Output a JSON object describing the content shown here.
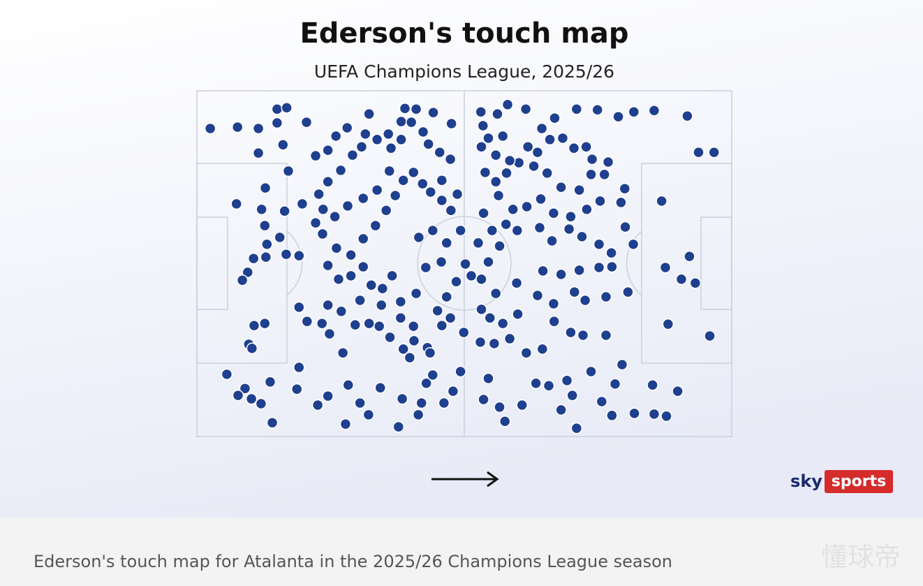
{
  "chart_data": {
    "type": "scatter",
    "title": "Ederson's touch map",
    "subtitle": "UEFA Champions League, 2025/26",
    "color": "#1f3f8f",
    "xlim": [
      0,
      100
    ],
    "ylim": [
      0,
      100
    ],
    "x": [
      2.5,
      7.6,
      11.5,
      15.0,
      16.8,
      15.0,
      20.5,
      11.5,
      16.1,
      17.1,
      12.8,
      7.4,
      12.1,
      16.4,
      19.7,
      12.7,
      15.5,
      13.1,
      12.9,
      10.6,
      16.7,
      19.1,
      9.5,
      8.5,
      10.7,
      12.7,
      9.7,
      10.3,
      5.6,
      9.0,
      7.7,
      10.2,
      12.0,
      13.7,
      14.1,
      18.7,
      19.1,
      22.6,
      24.5,
      27.8,
      28.3,
      30.5,
      32.1,
      34.3,
      37.7,
      38.4,
      41.4,
      42.0,
      46.2,
      47.9,
      49.3,
      42.9,
      44.1,
      22.2,
      24.5,
      26.0,
      28.1,
      32.2,
      31.5,
      33.7,
      35.8,
      38.2,
      38.9,
      41.0,
      40.1,
      42.3,
      44.2,
      47.6,
      43.3,
      45.4,
      47.4,
      38.2,
      36.3,
      30.8,
      29.1,
      26.9,
      24.5,
      22.8,
      23.6,
      22.2,
      23.5,
      26.1,
      28.8,
      31.1,
      33.4,
      35.4,
      37.1,
      38.6,
      40.5,
      42.2,
      43.7,
      45.8,
      47.5,
      48.7,
      45.8,
      36.0,
      33.7,
      31.1,
      28.2,
      25.8,
      24.5,
      26.5,
      28.8,
      31.1,
      32.6,
      34.7,
      36.5,
      38.1,
      41.0,
      42.8,
      45.7,
      48.5,
      46.7,
      45.0,
      47.4,
      49.9,
      43.1,
      40.6,
      38.6,
      36.1,
      34.1,
      32.2,
      29.6,
      27.3,
      24.8,
      23.4,
      20.6,
      19.1,
      24.5,
      27.0,
      30.5,
      34.5,
      38.1,
      40.5,
      39.8,
      43.6,
      45.8,
      41.5,
      44.1,
      46.7,
      49.3,
      50.2,
      51.3,
      53.2,
      54.5,
      56.6,
      55.2,
      52.6,
      53.1,
      56.2,
      58.1,
      61.5,
      64.5,
      66.9,
      71.0,
      74.9,
      78.8,
      81.7,
      85.5,
      91.7,
      93.8,
      96.7,
      86.9,
      87.6,
      92.1,
      90.6,
      93.2,
      88.1,
      95.9,
      85.2,
      89.9,
      87.8,
      85.5,
      81.8,
      77.6,
      75.7,
      78.2,
      79.5,
      73.7,
      71.0,
      68.1,
      70.2,
      69.2,
      65.8,
      63.4,
      60.8,
      57.6,
      56.6,
      53.6,
      54.5,
      53.0,
      55.6,
      58.5,
      61.6,
      64.6,
      66.8,
      69.9,
      72.2,
      76.5,
      80.6,
      76.5,
      72.6,
      70.6,
      66.7,
      63.7,
      60.0,
      57.2,
      54.8,
      53.2,
      55.9,
      59.8,
      64.7,
      68.1,
      71.5,
      75.2,
      77.6,
      77.5,
      75.2,
      72.0,
      69.6,
      66.4,
      64.1,
      59.9,
      57.8,
      53.6,
      56.4,
      59.1,
      61.7,
      64.3,
      66.7,
      69.9,
      72.9,
      75.4,
      79.3,
      80.0,
      76.2,
      73.7,
      71.5,
      68.1,
      65.5,
      63.0,
      60.2,
      57.9,
      55.9,
      53.9,
      53.2,
      55.9,
      58.5,
      61.9,
      63.7,
      66.0,
      68.4,
      70.5,
      72.8,
      76.9,
      73.9,
      80.1,
      81.6,
      53.5,
      54.5,
      57.2
    ],
    "y": [
      89.1,
      89.5,
      89.1,
      94.7,
      95.1,
      90.7,
      90.9,
      82.0,
      84.4,
      76.8,
      71.9,
      67.3,
      65.7,
      65.2,
      67.3,
      61.0,
      57.6,
      55.6,
      51.9,
      51.5,
      52.7,
      52.3,
      47.5,
      45.2,
      32.1,
      32.7,
      26.7,
      25.5,
      18.0,
      13.9,
      11.9,
      10.9,
      9.5,
      15.8,
      4.0,
      13.7,
      20.0,
      9.1,
      11.7,
      3.6,
      14.9,
      9.7,
      6.3,
      14.1,
      2.8,
      10.9,
      6.3,
      9.7,
      9.7,
      13.1,
      18.8,
      15.4,
      17.8,
      81.2,
      82.8,
      86.9,
      89.3,
      93.3,
      87.5,
      85.9,
      87.5,
      91.1,
      94.9,
      94.7,
      90.9,
      88.1,
      93.7,
      90.5,
      84.6,
      82.2,
      80.2,
      85.9,
      83.4,
      83.8,
      81.4,
      77.0,
      73.7,
      70.1,
      65.7,
      61.8,
      58.6,
      54.5,
      52.5,
      57.2,
      61.0,
      65.4,
      69.7,
      74.1,
      76.4,
      73.1,
      70.7,
      68.3,
      65.4,
      70.1,
      74.1,
      76.8,
      71.3,
      68.9,
      66.7,
      63.6,
      49.5,
      45.5,
      46.5,
      49.1,
      43.8,
      42.8,
      46.5,
      39.0,
      41.4,
      48.9,
      50.5,
      44.8,
      40.4,
      36.4,
      34.3,
      30.1,
      25.7,
      27.7,
      25.3,
      28.7,
      31.9,
      32.7,
      32.3,
      24.2,
      29.7,
      32.7,
      33.3,
      37.4,
      38.0,
      36.2,
      39.4,
      38.0,
      34.3,
      31.9,
      22.8,
      24.2,
      32.1,
      57.6,
      59.6,
      56.0,
      59.6,
      49.9,
      46.5,
      45.5,
      50.5,
      55.1,
      59.6,
      56.0,
      93.9,
      93.3,
      96.0,
      94.7,
      89.1,
      92.1,
      94.7,
      94.5,
      92.5,
      93.9,
      94.3,
      92.7,
      82.2,
      82.2,
      68.1,
      48.9,
      52.1,
      45.5,
      44.4,
      32.5,
      29.1,
      14.9,
      13.1,
      5.9,
      6.5,
      6.7,
      6.1,
      10.1,
      15.2,
      20.8,
      18.8,
      2.4,
      7.7,
      11.9,
      16.2,
      14.7,
      15.4,
      9.1,
      4.4,
      8.5,
      10.7,
      16.8,
      27.3,
      26.9,
      28.3,
      24.2,
      25.3,
      33.3,
      30.1,
      29.3,
      29.3,
      41.8,
      40.4,
      39.4,
      41.8,
      38.4,
      40.8,
      35.4,
      32.7,
      34.3,
      36.8,
      41.4,
      44.4,
      47.9,
      46.9,
      48.1,
      48.9,
      49.1,
      53.1,
      55.6,
      57.8,
      60.0,
      56.6,
      60.4,
      59.6,
      61.4,
      64.6,
      69.7,
      65.7,
      66.5,
      68.7,
      64.6,
      63.6,
      65.7,
      68.1,
      67.7,
      71.7,
      75.8,
      75.8,
      71.3,
      72.1,
      76.2,
      78.2,
      79.2,
      76.2,
      73.7,
      76.4,
      83.8,
      81.4,
      79.8,
      83.8,
      82.2,
      85.9,
      86.3,
      83.4,
      83.8,
      79.4,
      80.2,
      60.6,
      55.6,
      89.9,
      86.3,
      86.9
    ]
  },
  "logo": {
    "sky": "sky",
    "sports": "sports"
  },
  "caption": "Ederson's touch map for Atalanta in the 2025/26 Champions League season",
  "watermark": "懂球帝"
}
